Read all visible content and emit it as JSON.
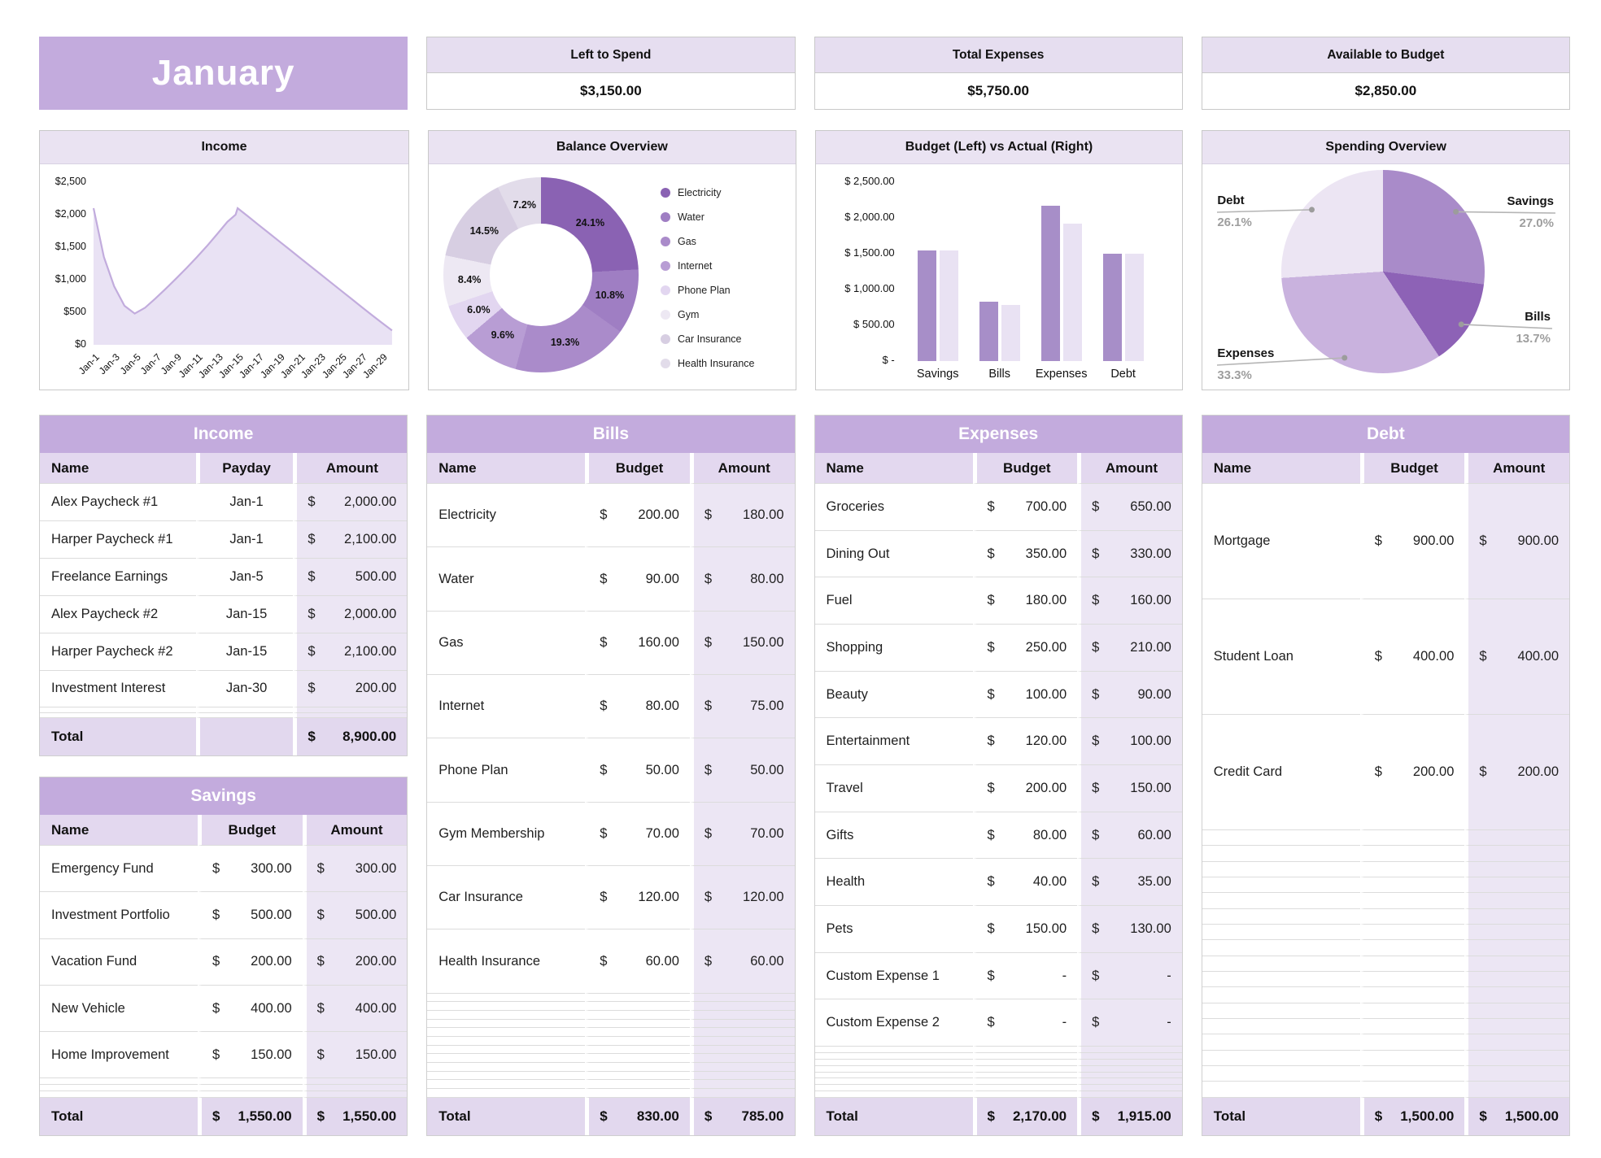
{
  "month_title": "January",
  "currency_symbol": "$",
  "summary_cards": [
    {
      "label": "Left to Spend",
      "value": "$3,150.00"
    },
    {
      "label": "Total Expenses",
      "value": "$5,750.00"
    },
    {
      "label": "Available to Budget",
      "value": "$2,850.00"
    }
  ],
  "colors": {
    "banner_bg": "#c3abdd",
    "panel_title_bg": "#eae3f2",
    "card_header_bg": "#e6def0",
    "table_title_bg": "#c3abdd",
    "column_header_bg": "#e3d8ef",
    "amount_col_bg": "#ece6f4",
    "total_row_bg": "#e2d8ee",
    "area_line": "#c2acdd",
    "area_fill": "#e9e2f4",
    "bar_budget": "#a78ec8",
    "bar_actual": "#e9e2f3",
    "callout_line": "#b5b5b5",
    "callout_dot": "#9c9c9c"
  },
  "chart_data": [
    {
      "id": "income_trend",
      "type": "area",
      "title": "Income",
      "ylim": [
        0,
        2500
      ],
      "grid": false,
      "y_ticks": [
        {
          "v": 2500,
          "label": "$2,500"
        },
        {
          "v": 2000,
          "label": "$2,000"
        },
        {
          "v": 1500,
          "label": "$1,500"
        },
        {
          "v": 1000,
          "label": "$1,000"
        },
        {
          "v": 500,
          "label": "$500"
        },
        {
          "v": 0,
          "label": "$0"
        }
      ],
      "x_ticks": [
        "Jan-1",
        "Jan-3",
        "Jan-5",
        "Jan-7",
        "Jan-9",
        "Jan-11",
        "Jan-13",
        "Jan-15",
        "Jan-17",
        "Jan-19",
        "Jan-21",
        "Jan-23",
        "Jan-25",
        "Jan-27",
        "Jan-29"
      ],
      "points": [
        [
          1,
          2100
        ],
        [
          2,
          1350
        ],
        [
          3,
          900
        ],
        [
          4,
          600
        ],
        [
          5,
          480
        ],
        [
          6,
          570
        ],
        [
          7,
          710
        ],
        [
          8,
          860
        ],
        [
          9,
          1015
        ],
        [
          10,
          1175
        ],
        [
          11,
          1340
        ],
        [
          12,
          1515
        ],
        [
          13,
          1700
        ],
        [
          14,
          1890
        ],
        [
          14.8,
          2000
        ],
        [
          15,
          2100
        ],
        [
          16,
          1975
        ],
        [
          17,
          1848
        ],
        [
          18,
          1722
        ],
        [
          19,
          1596
        ],
        [
          20,
          1470
        ],
        [
          21,
          1344
        ],
        [
          22,
          1218
        ],
        [
          23,
          1092
        ],
        [
          24,
          966
        ],
        [
          25,
          840
        ],
        [
          26,
          714
        ],
        [
          27,
          588
        ],
        [
          28,
          462
        ],
        [
          29,
          340
        ],
        [
          30,
          220
        ]
      ]
    },
    {
      "id": "balance_overview",
      "type": "donut",
      "title": "Balance Overview",
      "legend_position": "right",
      "segments": [
        {
          "label": "Electricity",
          "pct": 24.1,
          "pct_label": "24.1%",
          "color": "#8a62b3"
        },
        {
          "label": "Water",
          "pct": 10.8,
          "pct_label": "10.8%",
          "color": "#9f7ec3"
        },
        {
          "label": "Gas",
          "pct": 19.3,
          "pct_label": "19.3%",
          "color": "#aa8bca"
        },
        {
          "label": "Internet",
          "pct": 9.6,
          "pct_label": "9.6%",
          "color": "#b89dd4"
        },
        {
          "label": "Phone Plan",
          "pct": 6.0,
          "pct_label": "6.0%",
          "color": "#e2d6f0"
        },
        {
          "label": "Gym",
          "pct": 8.4,
          "pct_label": "8.4%",
          "color": "#ede8f3"
        },
        {
          "label": "Car Insurance",
          "pct": 14.5,
          "pct_label": "14.5%",
          "color": "#d7cee2"
        },
        {
          "label": "Health Insurance",
          "pct": 7.2,
          "pct_label": "7.2%",
          "color": "#e2dcea"
        }
      ]
    },
    {
      "id": "budget_vs_actual",
      "type": "bar",
      "title": "Budget (Left) vs Actual (Right)",
      "categories": [
        "Savings",
        "Bills",
        "Expenses",
        "Debt"
      ],
      "series": [
        {
          "name": "Budget",
          "values": [
            1550,
            830,
            2170,
            1500
          ]
        },
        {
          "name": "Actual",
          "values": [
            1550,
            785,
            1915,
            1500
          ]
        }
      ],
      "ylim": [
        0,
        2500
      ],
      "grid": false,
      "y_ticks": [
        {
          "v": 2500,
          "label": "$ 2,500.00"
        },
        {
          "v": 2000,
          "label": "$ 2,000.00"
        },
        {
          "v": 1500,
          "label": "$ 1,500.00"
        },
        {
          "v": 1000,
          "label": "$ 1,000.00"
        },
        {
          "v": 500,
          "label": "$ 500.00"
        },
        {
          "v": 0,
          "label": "$ -"
        }
      ]
    },
    {
      "id": "spending_overview",
      "type": "pie",
      "title": "Spending Overview",
      "segments": [
        {
          "label": "Savings",
          "pct": 27.0,
          "pct_label": "27.0%",
          "color": "#a98bc9"
        },
        {
          "label": "Bills",
          "pct": 13.7,
          "pct_label": "13.7%",
          "color": "#8d62b6"
        },
        {
          "label": "Expenses",
          "pct": 33.3,
          "pct_label": "33.3%",
          "color": "#c9b2de"
        },
        {
          "label": "Debt",
          "pct": 26.1,
          "pct_label": "26.1%",
          "color": "#ece5f3"
        }
      ]
    }
  ],
  "tables": {
    "income": {
      "title": "Income",
      "columns": [
        "Name",
        "Payday",
        "Amount"
      ],
      "col_types": [
        "name",
        "center",
        "money"
      ],
      "col_widths": [
        "42.5%",
        "26.5%",
        "31%"
      ],
      "rows": [
        [
          "Alex Paycheck #1",
          "Jan-1",
          "2,000.00"
        ],
        [
          "Harper Paycheck #1",
          "Jan-1",
          "2,100.00"
        ],
        [
          "Freelance Earnings",
          "Jan-5",
          "500.00"
        ],
        [
          "Alex Paycheck #2",
          "Jan-15",
          "2,000.00"
        ],
        [
          "Harper Paycheck #2",
          "Jan-15",
          "2,100.00"
        ],
        [
          "Investment Interest",
          "Jan-30",
          "200.00"
        ]
      ],
      "empty_rows": 2,
      "total": {
        "label": "Total",
        "cells": [
          "",
          "8,900.00"
        ]
      }
    },
    "savings": {
      "title": "Savings",
      "columns": [
        "Name",
        "Budget",
        "Amount"
      ],
      "col_types": [
        "name",
        "money",
        "money"
      ],
      "col_widths": [
        "43%",
        "28.5%",
        "28.5%"
      ],
      "rows": [
        [
          "Emergency Fund",
          "300.00",
          "300.00"
        ],
        [
          "Investment Portfolio",
          "500.00",
          "500.00"
        ],
        [
          "Vacation Fund",
          "200.00",
          "200.00"
        ],
        [
          "New Vehicle",
          "400.00",
          "400.00"
        ],
        [
          "Home Improvement",
          "150.00",
          "150.00"
        ]
      ],
      "empty_rows": 3,
      "total": {
        "label": "Total",
        "cells": [
          "1,550.00",
          "1,550.00"
        ]
      }
    },
    "bills": {
      "title": "Bills",
      "columns": [
        "Name",
        "Budget",
        "Amount"
      ],
      "col_types": [
        "name",
        "money",
        "money"
      ],
      "col_widths": [
        "43%",
        "28.5%",
        "28.5%"
      ],
      "rows": [
        [
          "Electricity",
          "200.00",
          "180.00"
        ],
        [
          "Water",
          "90.00",
          "80.00"
        ],
        [
          "Gas",
          "160.00",
          "150.00"
        ],
        [
          "Internet",
          "80.00",
          "75.00"
        ],
        [
          "Phone Plan",
          "50.00",
          "50.00"
        ],
        [
          "Gym Membership",
          "70.00",
          "70.00"
        ],
        [
          "Car Insurance",
          "120.00",
          "120.00"
        ],
        [
          "Health Insurance",
          "60.00",
          "60.00"
        ]
      ],
      "empty_rows": 12,
      "total": {
        "label": "Total",
        "cells": [
          "830.00",
          "785.00"
        ]
      }
    },
    "expenses": {
      "title": "Expenses",
      "columns": [
        "Name",
        "Budget",
        "Amount"
      ],
      "col_types": [
        "name",
        "money",
        "money"
      ],
      "col_widths": [
        "43%",
        "28.5%",
        "28.5%"
      ],
      "rows": [
        [
          "Groceries",
          "700.00",
          "650.00"
        ],
        [
          "Dining Out",
          "350.00",
          "330.00"
        ],
        [
          "Fuel",
          "180.00",
          "160.00"
        ],
        [
          "Shopping",
          "250.00",
          "210.00"
        ],
        [
          "Beauty",
          "100.00",
          "90.00"
        ],
        [
          "Entertainment",
          "120.00",
          "100.00"
        ],
        [
          "Travel",
          "200.00",
          "150.00"
        ],
        [
          "Gifts",
          "80.00",
          "60.00"
        ],
        [
          "Health",
          "40.00",
          "35.00"
        ],
        [
          "Pets",
          "150.00",
          "130.00"
        ],
        [
          "Custom Expense 1",
          "-",
          "-"
        ],
        [
          "Custom Expense 2",
          "-",
          "-"
        ]
      ],
      "empty_rows": 8,
      "total": {
        "label": "Total",
        "cells": [
          "2,170.00",
          "1,915.00"
        ]
      }
    },
    "debt": {
      "title": "Debt",
      "columns": [
        "Name",
        "Budget",
        "Amount"
      ],
      "col_types": [
        "name",
        "money",
        "money"
      ],
      "col_widths": [
        "43%",
        "28.5%",
        "28.5%"
      ],
      "rows": [
        [
          "Mortgage",
          "900.00",
          "900.00"
        ],
        [
          "Student Loan",
          "400.00",
          "400.00"
        ],
        [
          "Credit Card",
          "200.00",
          "200.00"
        ]
      ],
      "empty_rows": 17,
      "total": {
        "label": "Total",
        "cells": [
          "1,500.00",
          "1,500.00"
        ]
      }
    }
  }
}
